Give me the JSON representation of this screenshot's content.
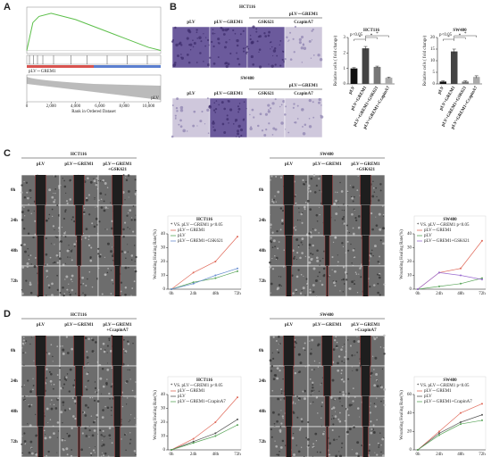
{
  "figure": {
    "panel_labels": [
      "A",
      "B",
      "C",
      "D"
    ],
    "b_images": [
      {
        "title": "HCT116",
        "group": "pLV－GREM1",
        "headers": [
          "pLV",
          "pLV－GREM1",
          "GSK621",
          "CcapinA7"
        ]
      },
      {
        "title": "SW480",
        "group": "pLV－GREM1",
        "headers": [
          "pLV",
          "pLV－GREM1",
          "GSK621",
          "CcapinA7"
        ]
      }
    ],
    "wound": [
      {
        "title": "HCT116",
        "headers": [
          [
            "pLV"
          ],
          [
            "pLV－GREM1"
          ],
          [
            "pLV－GREM1",
            "+GSK621"
          ]
        ],
        "rows": [
          "0h",
          "24h",
          "48h",
          "72h"
        ]
      },
      {
        "title": "SW480",
        "headers": [
          [
            "pLV"
          ],
          [
            "pLV－GREM1"
          ],
          [
            "pLV－GREM1",
            "+GSK621"
          ]
        ],
        "rows": [
          "0h",
          "24h",
          "48h",
          "72h"
        ]
      },
      {
        "title": "HCT116",
        "headers": [
          [
            "pLV"
          ],
          [
            "pLV－GREM1"
          ],
          [
            "pLV－GREM1",
            "+CcapinA7"
          ]
        ],
        "rows": [
          "0h",
          "24h",
          "48h",
          "72h"
        ]
      },
      {
        "title": "SW480",
        "headers": [
          [
            "pLV"
          ],
          [
            "pLV－GREM1"
          ],
          [
            "pLV－GREM1",
            "+CcapinA7"
          ]
        ],
        "rows": [
          "0h",
          "24h",
          "48h",
          "72h"
        ]
      }
    ]
  },
  "chart_data": [
    {
      "type": "gsea",
      "xlabel": "Rank in Ordered Dataset",
      "top_label": "pLV－GREM1",
      "bottom_label": "pLV",
      "x": [
        0,
        500,
        1000,
        2000,
        3000,
        4000,
        6000,
        8000,
        10000,
        11000
      ],
      "values": [
        0,
        0.45,
        0.55,
        0.6,
        0.55,
        0.5,
        0.35,
        0.2,
        0.05,
        0
      ],
      "color": "#5cbf4a",
      "xlim": [
        0,
        11000
      ],
      "ylim": [
        -0.05,
        0.7
      ],
      "xticks": [
        0,
        {
          "value": 2000,
          "label": "2,000"
        },
        {
          "value": 4000,
          "label": "4,000"
        },
        {
          "value": 6000,
          "label": "6,000"
        },
        {
          "value": 8000,
          "label": "8,000"
        },
        {
          "value": 10000,
          "label": "10,000"
        }
      ]
    },
    {
      "type": "bar",
      "title": "HCT116",
      "ylabel": "Relative cells ( fold change)",
      "annotation": "p<0.05",
      "sig": "*",
      "categories": [
        "pLV",
        "pLV+GREM1",
        "pLV+GREM1+GSK621",
        "pLV+GREM1+CcapinA7"
      ],
      "values": [
        1,
        2.3,
        1.1,
        0.4
      ],
      "errors": [
        0.05,
        0.12,
        0.05,
        0.04
      ],
      "colors": [
        "#111111",
        "#444444",
        "#777777",
        "#aaaaaa"
      ],
      "ylim": [
        0,
        3
      ],
      "yticks": [
        0,
        1,
        2,
        3
      ]
    },
    {
      "type": "bar",
      "title": "SW480",
      "ylabel": "Relative cells ( fold change)",
      "annotation": "p<0.05",
      "sig": "*",
      "categories": [
        "pLV",
        "pLV+GREM1",
        "pLV+GREM1+GSK621",
        "pLV+GREM1+CcapinA7"
      ],
      "values": [
        1,
        14,
        1,
        3
      ],
      "errors": [
        0.3,
        1,
        0.3,
        0.5
      ],
      "colors": [
        "#111111",
        "#444444",
        "#777777",
        "#aaaaaa"
      ],
      "ylim": [
        0,
        20
      ],
      "yticks": [
        0,
        5,
        10,
        15,
        20
      ]
    },
    {
      "type": "line",
      "title": "HCT116",
      "ylabel": "Wounding Healing Rate(%)",
      "annotation": "* VS. pLV－GREM1 p<0.05",
      "categories": [
        "0h",
        "24h",
        "48h",
        "72h"
      ],
      "ylim": [
        0,
        40
      ],
      "yticks": [
        0,
        10,
        20,
        30,
        40
      ],
      "series": [
        {
          "name": "pLV－GREM1",
          "color": "#e06a5a",
          "values": [
            0,
            12,
            20,
            38
          ]
        },
        {
          "name": "pLV",
          "color": "#5aa55a",
          "values": [
            0,
            5,
            8,
            13
          ]
        },
        {
          "name": "pLV－GREM1+GSK621",
          "color": "#6a8fd0",
          "values": [
            0,
            4,
            10,
            15
          ]
        }
      ]
    },
    {
      "type": "line",
      "title": "SW480",
      "ylabel": "Wounding Healing Rate(%)",
      "annotation": "* VS. pLV－GREM1 p<0.05",
      "categories": [
        "0h",
        "24h",
        "48h",
        "72h"
      ],
      "ylim": [
        0,
        40
      ],
      "yticks": [
        0,
        10,
        20,
        30,
        40
      ],
      "series": [
        {
          "name": "pLV－GREM1",
          "color": "#e06a5a",
          "values": [
            0,
            12,
            15,
            35
          ]
        },
        {
          "name": "pLV",
          "color": "#5aa55a",
          "values": [
            0,
            2,
            4,
            8
          ]
        },
        {
          "name": "pLV－GREM1+GSK621",
          "color": "#9a6ad0",
          "values": [
            0,
            12,
            10,
            7
          ]
        }
      ]
    },
    {
      "type": "line",
      "title": "HCT116",
      "ylabel": "Wounding Healing Rate(%)",
      "annotation": "* VS. pLV－GREM1 p<0.05",
      "categories": [
        "0h",
        "24h",
        "48h",
        "72h"
      ],
      "ylim": [
        0,
        40
      ],
      "yticks": [
        0,
        10,
        20,
        30,
        40
      ],
      "series": [
        {
          "name": "pLV－GREM1",
          "color": "#e06a5a",
          "values": [
            0,
            8,
            20,
            38
          ]
        },
        {
          "name": "pLV",
          "color": "#555555",
          "values": [
            0,
            6,
            12,
            22
          ]
        },
        {
          "name": "pLV－GREM1+CcapinA7",
          "color": "#5aa55a",
          "values": [
            0,
            5,
            10,
            18
          ]
        }
      ]
    },
    {
      "type": "line",
      "title": "SW480",
      "ylabel": "Wounding Healing Rate(%)",
      "annotation": "* VS. pLV－GREM1 p<0.05",
      "categories": [
        "0h",
        "24h",
        "48h",
        "72h"
      ],
      "ylim": [
        0,
        60
      ],
      "yticks": [
        0,
        20,
        40,
        60
      ],
      "series": [
        {
          "name": "pLV－GREM1",
          "color": "#e06a5a",
          "values": [
            0,
            20,
            40,
            50
          ]
        },
        {
          "name": "pLV",
          "color": "#555555",
          "values": [
            0,
            18,
            30,
            38
          ]
        },
        {
          "name": "pLV－GREM1+CcapinA7",
          "color": "#5aa55a",
          "values": [
            0,
            16,
            28,
            32
          ]
        }
      ]
    }
  ]
}
